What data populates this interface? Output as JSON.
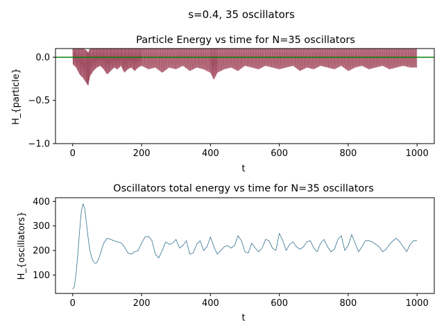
{
  "figure": {
    "suptitle": "s=0.4, 35 oscillators"
  },
  "chart_data": [
    {
      "type": "line",
      "title": "Particle Energy vs time for N=35 oscillators",
      "xlabel": "t",
      "ylabel": "H_{particle}",
      "xlim": [
        -50,
        1050
      ],
      "ylim": [
        -1.0,
        0.1
      ],
      "xticks": [
        0,
        200,
        400,
        600,
        800,
        1000
      ],
      "yticks": [
        -1.0,
        -0.5,
        0.0
      ],
      "ytick_labels": [
        "−1.0",
        "−0.5",
        "0.0"
      ],
      "grid": false,
      "series": [
        {
          "color": "#b56576",
          "style": "dense noisy signal",
          "x": [
            0,
            10,
            20,
            30,
            40,
            45,
            50,
            60,
            70,
            80,
            90,
            100,
            110,
            120,
            130,
            140,
            150,
            160,
            170,
            180,
            190,
            200,
            220,
            240,
            260,
            280,
            300,
            320,
            340,
            360,
            380,
            400,
            410,
            420,
            440,
            460,
            480,
            500,
            520,
            540,
            560,
            580,
            600,
            620,
            640,
            660,
            680,
            700,
            720,
            740,
            760,
            780,
            800,
            820,
            840,
            860,
            880,
            900,
            920,
            940,
            960,
            980,
            1000
          ],
          "upper": [
            0.1,
            0.1,
            0.1,
            0.1,
            0.08,
            0.05,
            0.1,
            0.1,
            0.1,
            0.1,
            0.1,
            0.1,
            0.1,
            0.1,
            0.1,
            0.1,
            0.1,
            0.1,
            0.1,
            0.1,
            0.1,
            0.1,
            0.1,
            0.1,
            0.1,
            0.1,
            0.1,
            0.1,
            0.1,
            0.1,
            0.1,
            0.1,
            0.1,
            0.1,
            0.1,
            0.1,
            0.1,
            0.1,
            0.1,
            0.1,
            0.1,
            0.1,
            0.1,
            0.1,
            0.1,
            0.1,
            0.1,
            0.1,
            0.1,
            0.1,
            0.1,
            0.1,
            0.1,
            0.1,
            0.1,
            0.1,
            0.1,
            0.1,
            0.1,
            0.1,
            0.1,
            0.1,
            0.1
          ],
          "lower": [
            -0.08,
            -0.12,
            -0.2,
            -0.24,
            -0.3,
            -0.33,
            -0.22,
            -0.16,
            -0.12,
            -0.1,
            -0.14,
            -0.2,
            -0.16,
            -0.12,
            -0.14,
            -0.1,
            -0.18,
            -0.14,
            -0.12,
            -0.16,
            -0.12,
            -0.1,
            -0.14,
            -0.12,
            -0.18,
            -0.12,
            -0.14,
            -0.1,
            -0.16,
            -0.12,
            -0.14,
            -0.18,
            -0.26,
            -0.18,
            -0.14,
            -0.12,
            -0.16,
            -0.1,
            -0.12,
            -0.14,
            -0.1,
            -0.12,
            -0.14,
            -0.12,
            -0.1,
            -0.16,
            -0.12,
            -0.14,
            -0.1,
            -0.12,
            -0.14,
            -0.1,
            -0.16,
            -0.12,
            -0.1,
            -0.14,
            -0.12,
            -0.1,
            -0.14,
            -0.12,
            -0.1,
            -0.12,
            -0.12
          ]
        },
        {
          "color": "#008000",
          "style": "horizontal reference line",
          "x": [
            -50,
            1050
          ],
          "values": [
            0.0,
            0.0
          ]
        }
      ]
    },
    {
      "type": "line",
      "title": "Oscillators total energy vs time for N=35 oscillators",
      "xlabel": "t",
      "ylabel": "H_{oscillators}",
      "xlim": [
        -50,
        1050
      ],
      "ylim": [
        25,
        415
      ],
      "xticks": [
        0,
        200,
        400,
        600,
        800,
        1000
      ],
      "yticks": [
        100,
        200,
        300,
        400
      ],
      "grid": false,
      "series": [
        {
          "color": "#306f8c",
          "x": [
            0,
            5,
            10,
            15,
            20,
            25,
            30,
            35,
            40,
            45,
            50,
            55,
            60,
            65,
            70,
            75,
            80,
            90,
            100,
            110,
            120,
            130,
            140,
            150,
            160,
            170,
            180,
            190,
            200,
            210,
            220,
            230,
            240,
            250,
            260,
            270,
            280,
            290,
            300,
            310,
            320,
            330,
            340,
            350,
            360,
            370,
            380,
            390,
            400,
            410,
            420,
            430,
            440,
            450,
            460,
            470,
            480,
            490,
            500,
            510,
            520,
            530,
            540,
            550,
            560,
            570,
            580,
            590,
            600,
            610,
            620,
            630,
            640,
            650,
            660,
            670,
            680,
            690,
            700,
            710,
            720,
            730,
            740,
            750,
            760,
            770,
            780,
            790,
            800,
            810,
            820,
            830,
            840,
            850,
            860,
            870,
            880,
            890,
            900,
            910,
            920,
            930,
            940,
            950,
            960,
            970,
            980,
            990,
            1000
          ],
          "values": [
            42,
            55,
            110,
            190,
            280,
            360,
            390,
            370,
            310,
            250,
            200,
            170,
            155,
            148,
            150,
            165,
            185,
            230,
            250,
            245,
            240,
            235,
            232,
            215,
            190,
            185,
            195,
            200,
            230,
            255,
            258,
            240,
            185,
            170,
            200,
            235,
            225,
            230,
            245,
            210,
            220,
            240,
            185,
            190,
            225,
            240,
            200,
            215,
            255,
            215,
            185,
            200,
            215,
            220,
            210,
            220,
            260,
            240,
            195,
            190,
            230,
            210,
            195,
            210,
            245,
            240,
            210,
            200,
            270,
            240,
            200,
            225,
            235,
            215,
            205,
            215,
            235,
            240,
            210,
            195,
            230,
            245,
            215,
            195,
            205,
            245,
            260,
            200,
            220,
            265,
            230,
            195,
            215,
            240,
            240,
            235,
            225,
            215,
            195,
            205,
            225,
            240,
            250,
            235,
            215,
            195,
            225,
            240,
            240
          ]
        }
      ]
    }
  ]
}
